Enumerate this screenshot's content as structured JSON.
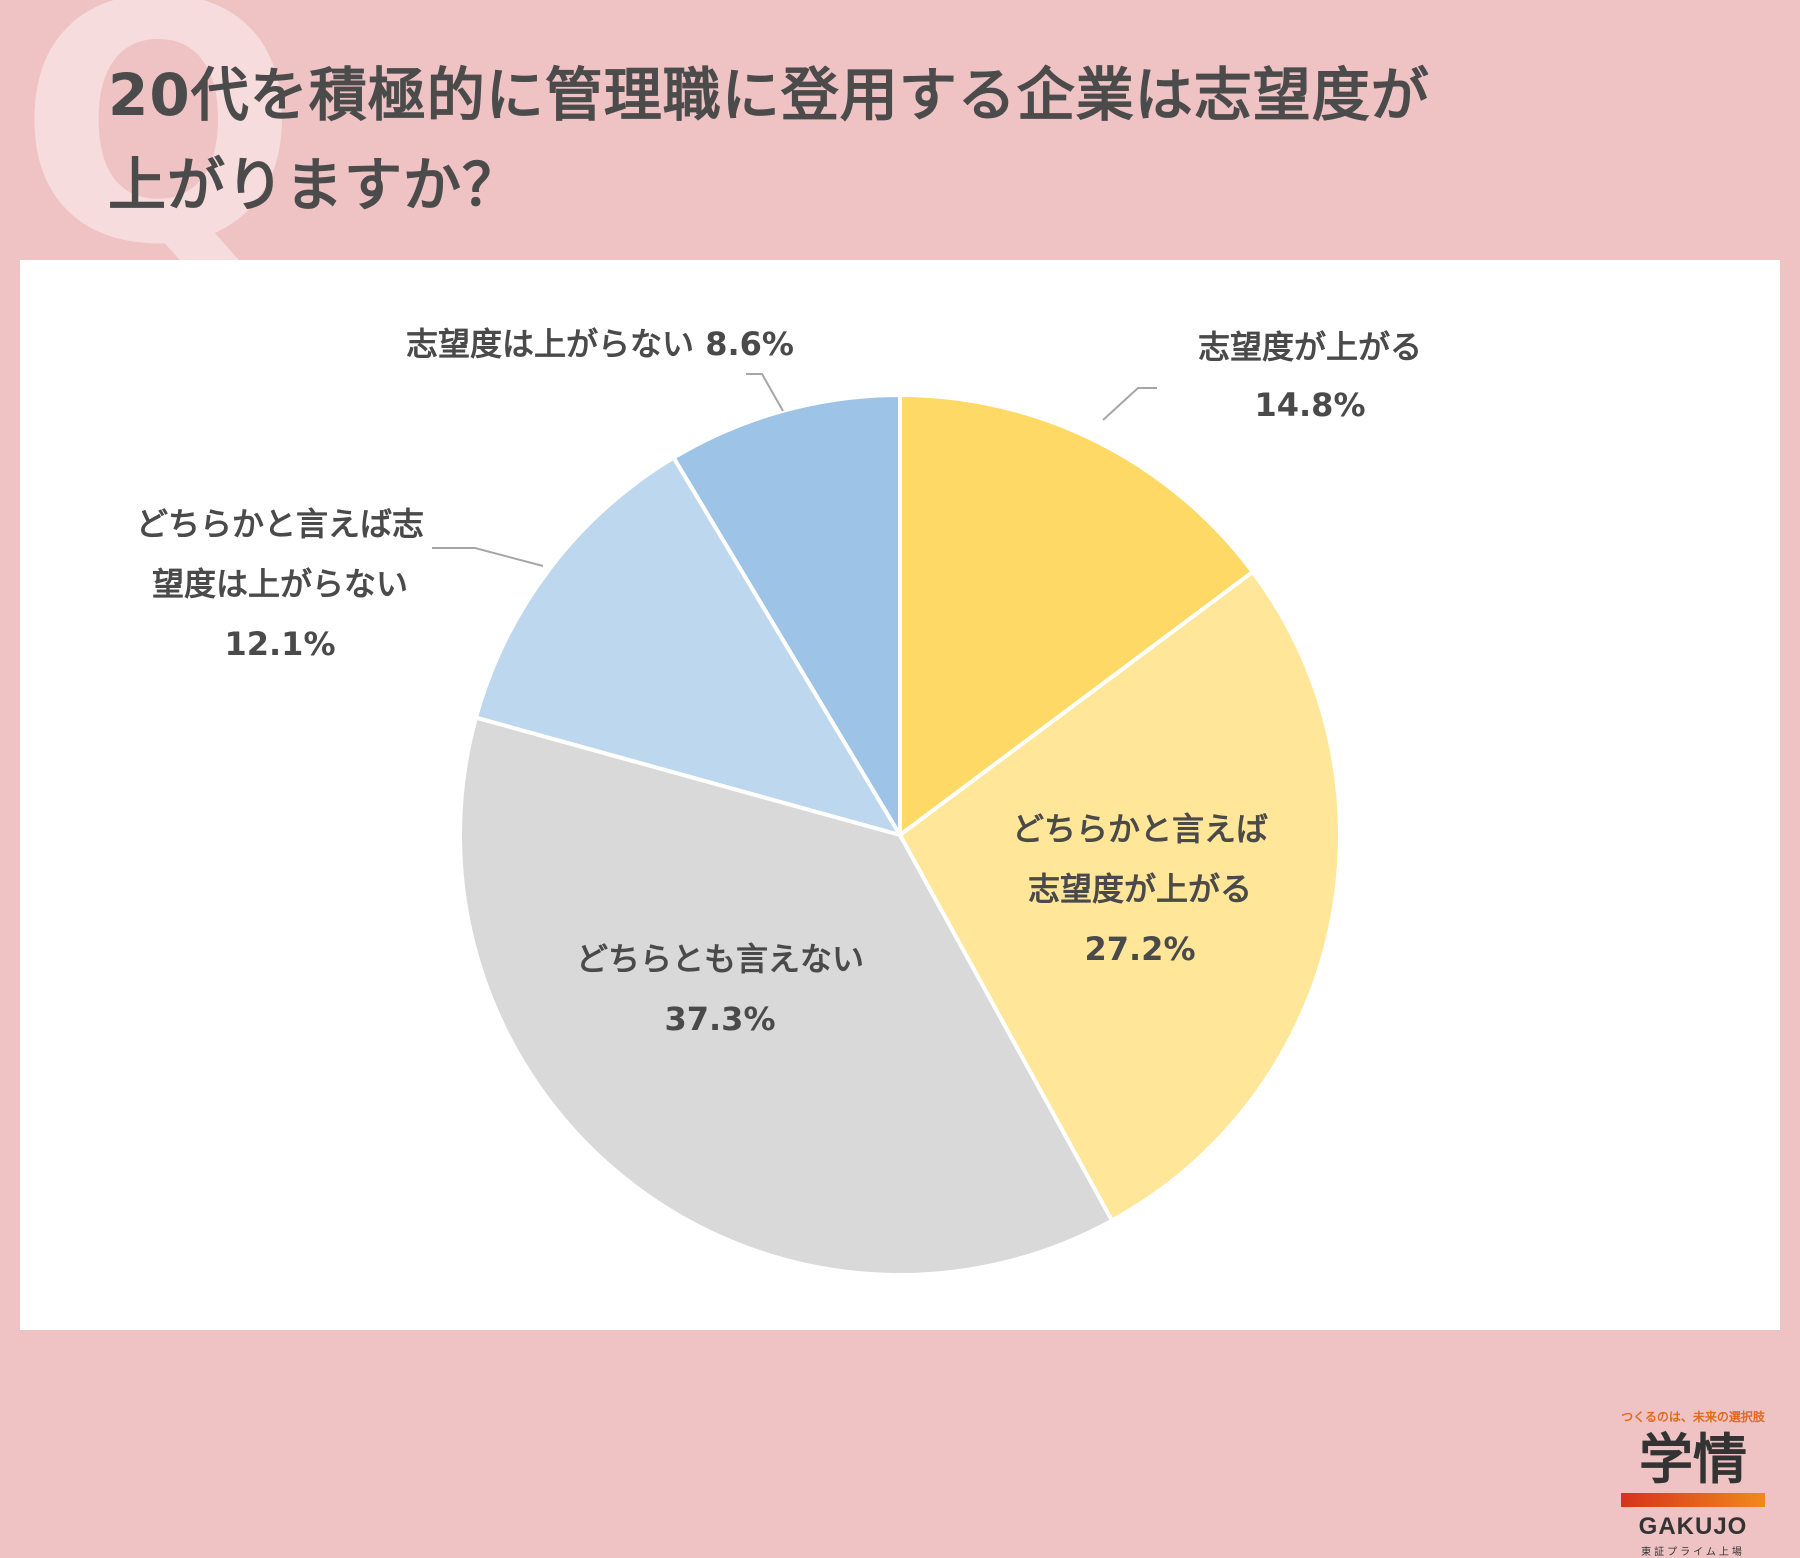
{
  "header": {
    "q_mark": "Q",
    "title_line1": "20代を積極的に管理職に登用する企業は志望度が",
    "title_line2": "上がりますか？"
  },
  "chart_data": {
    "type": "pie",
    "start_angle_deg": 0,
    "direction": "clockwise",
    "slices": [
      {
        "label_lines": [
          "志望度が上がる",
          "14.8%"
        ],
        "value": 14.8,
        "color": "#ffd966"
      },
      {
        "label_lines": [
          "どちらかと言えば",
          "志望度が上がる",
          "27.2%"
        ],
        "value": 27.2,
        "color": "#ffe699"
      },
      {
        "label_lines": [
          "どちらとも言えない",
          "37.3%"
        ],
        "value": 37.3,
        "color": "#d9d9d9"
      },
      {
        "label_lines": [
          "どちらかと言えば志",
          "望度は上がらない",
          "12.1%"
        ],
        "value": 12.1,
        "color": "#bdd7ee"
      },
      {
        "label_lines": [
          "志望度は上がらない 8.6%"
        ],
        "value": 8.6,
        "color": "#9dc3e6"
      }
    ]
  },
  "logo": {
    "tagline": "つくるのは、未来の選択肢",
    "kanji": "学情",
    "roman": "GAKUJO",
    "sub": "東証プライム上場"
  }
}
